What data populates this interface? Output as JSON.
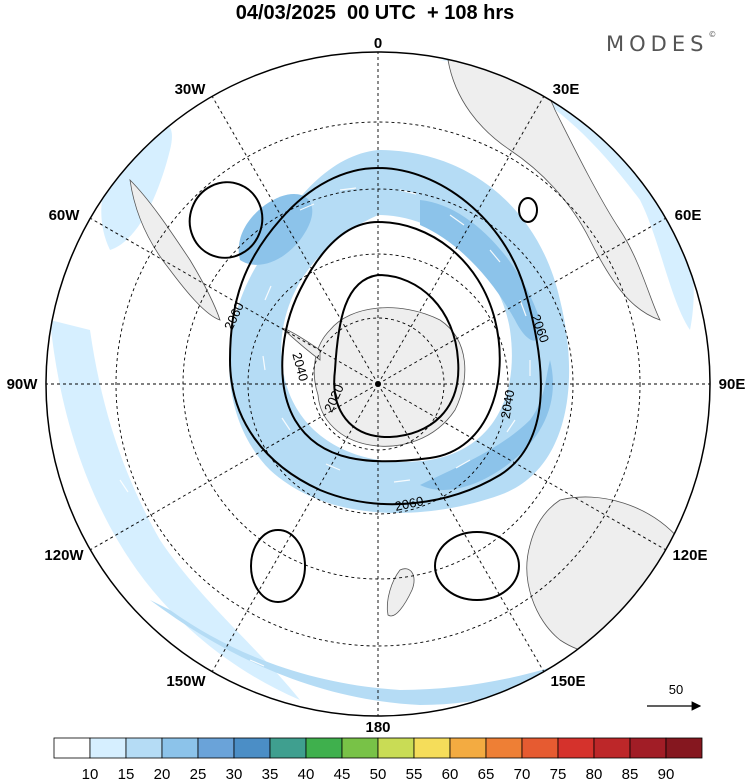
{
  "header": {
    "title": "04/03/2025  00 UTC  + 108 hrs",
    "brand": "MODES",
    "brand_mark": "©"
  },
  "map": {
    "projection": "south polar stereographic",
    "longitude_labels": {
      "top": "0",
      "top_right": "30E",
      "upper_right": "60E",
      "right": "90E",
      "lower_right": "120E",
      "bottom_right": "150E",
      "bottom": "180",
      "bottom_left": "150W",
      "lower_left": "120W",
      "left": "90W",
      "upper_left": "60W",
      "top_left": "30W"
    },
    "contour_labels": [
      "2020",
      "2040",
      "2060",
      "2040",
      "2060",
      "2060"
    ],
    "reference_vector": {
      "label": "50"
    },
    "colors": {
      "land": "#eeeeee",
      "wind_shade_1": "#d6efff",
      "wind_shade_2": "#b5dcf5",
      "wind_shade_3": "#8cc3ea"
    }
  },
  "colorbar": {
    "ticks": [
      "10",
      "15",
      "20",
      "25",
      "30",
      "35",
      "40",
      "45",
      "50",
      "55",
      "60",
      "65",
      "70",
      "75",
      "80",
      "85",
      "90"
    ],
    "colors": [
      "#ffffff",
      "#d6efff",
      "#b5dcf5",
      "#8cc3ea",
      "#6aa3d9",
      "#4b8ec6",
      "#3f9f8f",
      "#3fb04d",
      "#78c247",
      "#c9dc55",
      "#f5dd5a",
      "#f3ab41",
      "#ee7f35",
      "#e65b31",
      "#d5322c",
      "#bd2729",
      "#a11d26",
      "#85171f"
    ]
  }
}
